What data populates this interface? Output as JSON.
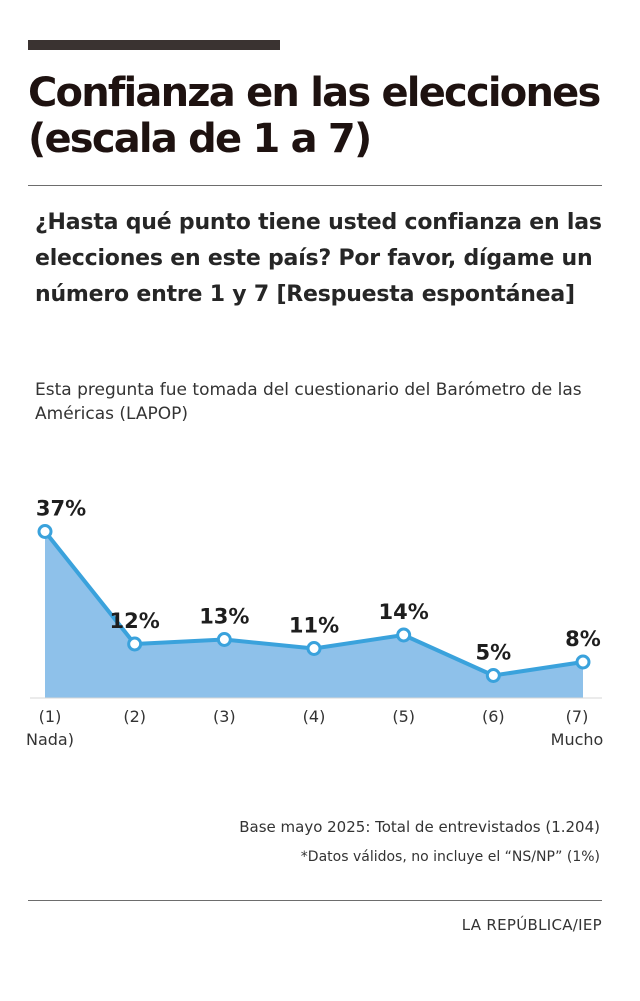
{
  "header": {
    "title": "Confianza en las elecciones (escala de 1 a 7)",
    "question": "¿Hasta qué punto tiene usted confianza en las elecciones en este país? Por favor, dígame un número entre 1 y 7 [Respuesta espontánea]",
    "note": "Esta pregunta fue tomada del cuestionario del Barómetro de las Américas (LAPOP)"
  },
  "chart_data": {
    "type": "area",
    "categories": [
      "(1)",
      "(2)",
      "(3)",
      "(4)",
      "(5)",
      "(6)",
      "(7)"
    ],
    "category_sublabels": [
      "Nada)",
      "",
      "",
      "",
      "",
      "",
      "Mucho"
    ],
    "values": [
      37,
      12,
      13,
      11,
      14,
      5,
      8
    ],
    "value_labels": [
      "37%",
      "12%",
      "13%",
      "11%",
      "14%",
      "5%",
      "8%"
    ],
    "ylim": [
      0,
      40
    ],
    "grid": false,
    "colors": {
      "line": "#3aa2dc",
      "fill": "#8ec1ea",
      "marker_fill": "#ffffff"
    }
  },
  "footer": {
    "base": "Base mayo 2025: Total de entrevistados (1.204)",
    "footnote": "*Datos válidos, no incluye el “NS/NP” (1%)",
    "source": "LA REPÚBLICA/IEP"
  }
}
